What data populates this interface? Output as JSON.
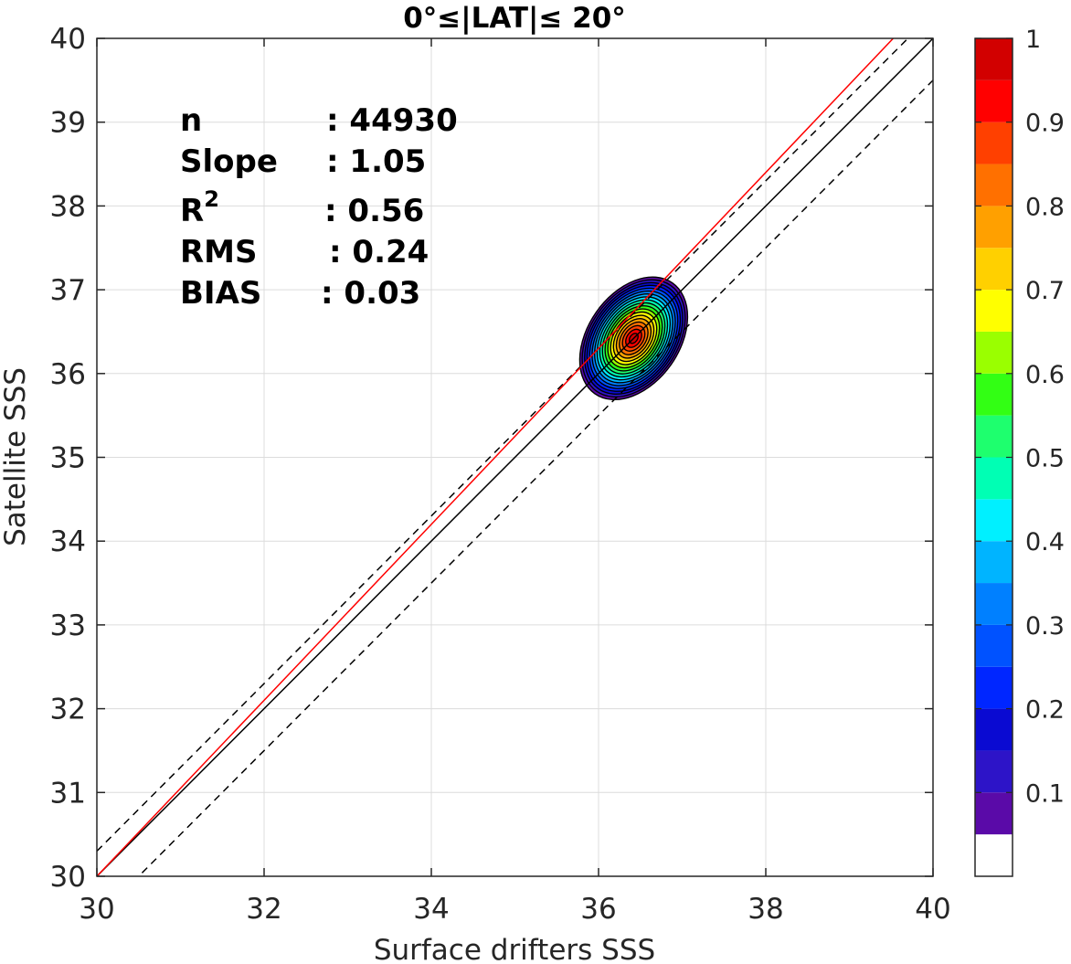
{
  "chart_data": {
    "type": "contour",
    "title": "0°≤|LAT|≤ 20°",
    "xlabel": "Surface drifters SSS",
    "ylabel": "Satellite SSS",
    "xlim": [
      30,
      40
    ],
    "ylim": [
      30,
      40
    ],
    "xticks": [
      "30",
      "32",
      "34",
      "36",
      "38",
      "40"
    ],
    "yticks": [
      "30",
      "31",
      "32",
      "33",
      "34",
      "35",
      "36",
      "37",
      "38",
      "39",
      "40"
    ],
    "grid": true,
    "stats": {
      "n": {
        "label": "n",
        "value": ": 44930"
      },
      "slope": {
        "label": "Slope",
        "value": ": 1.05"
      },
      "r2": {
        "label": "R",
        "sup": "2",
        "value": ": 0.56"
      },
      "rms": {
        "label": "RMS",
        "value": ": 0.24"
      },
      "bias": {
        "label": "BIAS",
        "value": ": 0.03"
      }
    },
    "lines": [
      {
        "role": "identity",
        "color": "#000000",
        "style": "solid",
        "slope": 1,
        "intercept": 0
      },
      {
        "role": "identity-plus-offset",
        "color": "#000000",
        "style": "dashed",
        "slope": 1,
        "intercept": 0.3
      },
      {
        "role": "identity-minus-offset",
        "color": "#000000",
        "style": "dashed",
        "slope": 1,
        "intercept": -0.5
      },
      {
        "role": "regression",
        "color": "#ff0000",
        "style": "solid",
        "slope": 1.05,
        "intercept": -1.5
      }
    ],
    "density_peak": {
      "x": 36.42,
      "y": 36.42,
      "value": 1.0
    },
    "colorbar": {
      "ticks": [
        "0.1",
        "0.2",
        "0.3",
        "0.4",
        "0.5",
        "0.6",
        "0.7",
        "0.8",
        "0.9",
        "1"
      ],
      "levels": [
        0,
        0.05,
        0.1,
        0.15,
        0.2,
        0.25,
        0.3,
        0.35,
        0.4,
        0.45,
        0.5,
        0.55,
        0.6,
        0.65,
        0.7,
        0.75,
        0.8,
        0.85,
        0.9,
        0.95,
        1.0
      ],
      "colors": [
        "#ffffff",
        "#5a0aa8",
        "#2d14c8",
        "#0a0ad2",
        "#0026ff",
        "#0052ff",
        "#0080ff",
        "#00b4ff",
        "#00f0ff",
        "#00ffb4",
        "#1eff6e",
        "#32ff14",
        "#9aff00",
        "#ffff00",
        "#ffd000",
        "#ffa000",
        "#ff7000",
        "#ff4000",
        "#ff0000",
        "#d20000",
        "#8b0000"
      ]
    }
  }
}
